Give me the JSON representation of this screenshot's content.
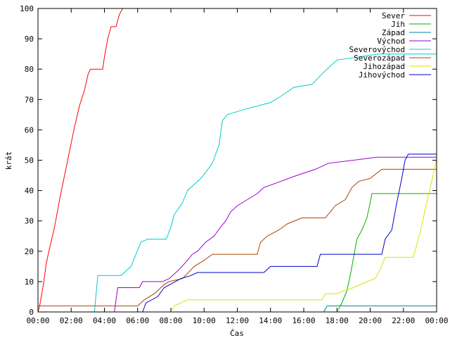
{
  "chart_data": {
    "type": "line",
    "title": "",
    "xlabel": "Čas",
    "ylabel": "krát",
    "xlim": [
      0,
      24
    ],
    "ylim": [
      0,
      100
    ],
    "grid": false,
    "legend_position": "top-right",
    "x_ticks": [
      {
        "value": 0,
        "label": "00:00"
      },
      {
        "value": 2,
        "label": "02:00"
      },
      {
        "value": 4,
        "label": "04:00"
      },
      {
        "value": 6,
        "label": "06:00"
      },
      {
        "value": 8,
        "label": "08:00"
      },
      {
        "value": 10,
        "label": "10:00"
      },
      {
        "value": 12,
        "label": "12:00"
      },
      {
        "value": 14,
        "label": "14:00"
      },
      {
        "value": 16,
        "label": "16:00"
      },
      {
        "value": 18,
        "label": "18:00"
      },
      {
        "value": 20,
        "label": "20:00"
      },
      {
        "value": 22,
        "label": "22:00"
      },
      {
        "value": 24,
        "label": "00:00"
      }
    ],
    "y_ticks": [
      0,
      10,
      20,
      30,
      40,
      50,
      60,
      70,
      80,
      90,
      100
    ],
    "series": [
      {
        "name": "Sever",
        "color": "#ff0000",
        "points": [
          [
            0,
            0
          ],
          [
            0.1,
            2
          ],
          [
            0.2,
            5
          ],
          [
            0.35,
            10
          ],
          [
            0.5,
            16
          ],
          [
            0.7,
            21
          ],
          [
            1.0,
            28
          ],
          [
            1.3,
            37
          ],
          [
            1.6,
            45
          ],
          [
            1.9,
            53
          ],
          [
            2.2,
            61
          ],
          [
            2.5,
            68
          ],
          [
            2.8,
            73
          ],
          [
            3.0,
            78
          ],
          [
            3.15,
            80
          ],
          [
            3.9,
            80
          ],
          [
            4.0,
            84
          ],
          [
            4.2,
            90
          ],
          [
            4.4,
            94
          ],
          [
            4.7,
            94
          ],
          [
            4.9,
            98
          ],
          [
            5.1,
            100
          ]
        ]
      },
      {
        "name": "Jih",
        "color": "#00b000",
        "points": [
          [
            0,
            0
          ],
          [
            18.0,
            0
          ],
          [
            18.1,
            1
          ],
          [
            18.3,
            3
          ],
          [
            18.6,
            7
          ],
          [
            18.8,
            12
          ],
          [
            19.0,
            18
          ],
          [
            19.2,
            24
          ],
          [
            19.5,
            27
          ],
          [
            19.8,
            31
          ],
          [
            20.0,
            36
          ],
          [
            20.1,
            39
          ],
          [
            24,
            39
          ]
        ]
      },
      {
        "name": "Západ",
        "color": "#0080a0",
        "points": [
          [
            0,
            0
          ],
          [
            17.2,
            0
          ],
          [
            17.4,
            2
          ],
          [
            24,
            2
          ]
        ]
      },
      {
        "name": "Východ",
        "color": "#9900cc",
        "points": [
          [
            0,
            0
          ],
          [
            4.6,
            0
          ],
          [
            4.8,
            8
          ],
          [
            6.1,
            8
          ],
          [
            6.3,
            10
          ],
          [
            7.5,
            10
          ],
          [
            7.9,
            11
          ],
          [
            8.1,
            12
          ],
          [
            8.5,
            14
          ],
          [
            9.0,
            17
          ],
          [
            9.3,
            19
          ],
          [
            9.6,
            20
          ],
          [
            10.1,
            23
          ],
          [
            10.6,
            25
          ],
          [
            11.0,
            28
          ],
          [
            11.3,
            30
          ],
          [
            11.6,
            33
          ],
          [
            12.0,
            35
          ],
          [
            12.6,
            37
          ],
          [
            13.2,
            39
          ],
          [
            13.6,
            41
          ],
          [
            14.6,
            43
          ],
          [
            15.6,
            45
          ],
          [
            16.7,
            47
          ],
          [
            17.5,
            49
          ],
          [
            19.0,
            50
          ],
          [
            20.4,
            51
          ],
          [
            24,
            51
          ]
        ]
      },
      {
        "name": "Severovýchod",
        "color": "#00cccc",
        "points": [
          [
            0,
            0
          ],
          [
            3.4,
            0
          ],
          [
            3.6,
            12
          ],
          [
            5.0,
            12
          ],
          [
            5.6,
            15
          ],
          [
            5.9,
            19
          ],
          [
            6.2,
            23
          ],
          [
            6.6,
            24
          ],
          [
            7.7,
            24
          ],
          [
            7.8,
            25
          ],
          [
            8.0,
            28
          ],
          [
            8.2,
            32
          ],
          [
            8.7,
            36
          ],
          [
            9.0,
            40
          ],
          [
            9.4,
            42
          ],
          [
            9.8,
            44
          ],
          [
            10.1,
            46
          ],
          [
            10.5,
            49
          ],
          [
            10.9,
            55
          ],
          [
            11.1,
            63
          ],
          [
            11.4,
            65
          ],
          [
            12.6,
            67
          ],
          [
            14.0,
            69
          ],
          [
            14.6,
            71
          ],
          [
            15.4,
            74
          ],
          [
            16.5,
            75
          ],
          [
            17.2,
            79
          ],
          [
            17.6,
            81
          ],
          [
            18.0,
            83
          ],
          [
            20.5,
            85
          ],
          [
            24,
            85
          ]
        ]
      },
      {
        "name": "Severozápad",
        "color": "#b04000",
        "points": [
          [
            0,
            2
          ],
          [
            6.0,
            2
          ],
          [
            6.4,
            4
          ],
          [
            7.0,
            6
          ],
          [
            7.6,
            9
          ],
          [
            7.9,
            10
          ],
          [
            8.7,
            11
          ],
          [
            9.4,
            15
          ],
          [
            10.0,
            17
          ],
          [
            10.5,
            19
          ],
          [
            13.2,
            19
          ],
          [
            13.4,
            23
          ],
          [
            13.8,
            25
          ],
          [
            14.5,
            27
          ],
          [
            15.0,
            29
          ],
          [
            15.9,
            31
          ],
          [
            17.3,
            31
          ],
          [
            17.6,
            33
          ],
          [
            17.9,
            35
          ],
          [
            18.5,
            37
          ],
          [
            18.9,
            41
          ],
          [
            19.3,
            43
          ],
          [
            20.0,
            44
          ],
          [
            20.7,
            47
          ],
          [
            24,
            47
          ]
        ]
      },
      {
        "name": "Jihozápad",
        "color": "#e0e000",
        "points": [
          [
            0,
            0
          ],
          [
            8.0,
            0
          ],
          [
            8.2,
            2
          ],
          [
            9.0,
            4
          ],
          [
            17.1,
            4
          ],
          [
            17.3,
            6
          ],
          [
            18.0,
            6
          ],
          [
            18.4,
            7
          ],
          [
            19.0,
            8
          ],
          [
            19.8,
            10
          ],
          [
            20.3,
            11
          ],
          [
            20.6,
            14
          ],
          [
            20.9,
            18
          ],
          [
            22.6,
            18
          ],
          [
            23.0,
            26
          ],
          [
            23.4,
            36
          ],
          [
            23.7,
            43
          ],
          [
            23.9,
            48
          ],
          [
            24,
            50
          ]
        ]
      },
      {
        "name": "Jihovýchod",
        "color": "#0000cc",
        "points": [
          [
            0,
            0
          ],
          [
            6.3,
            0
          ],
          [
            6.5,
            3
          ],
          [
            7.2,
            5
          ],
          [
            7.6,
            8
          ],
          [
            8.6,
            11
          ],
          [
            9.2,
            12
          ],
          [
            9.6,
            13
          ],
          [
            13.6,
            13
          ],
          [
            14.0,
            15
          ],
          [
            16.8,
            15
          ],
          [
            17.0,
            19
          ],
          [
            20.7,
            19
          ],
          [
            20.9,
            24
          ],
          [
            21.3,
            27
          ],
          [
            21.6,
            36
          ],
          [
            21.9,
            44
          ],
          [
            22.1,
            50
          ],
          [
            22.3,
            52
          ],
          [
            24,
            52
          ]
        ]
      }
    ]
  }
}
